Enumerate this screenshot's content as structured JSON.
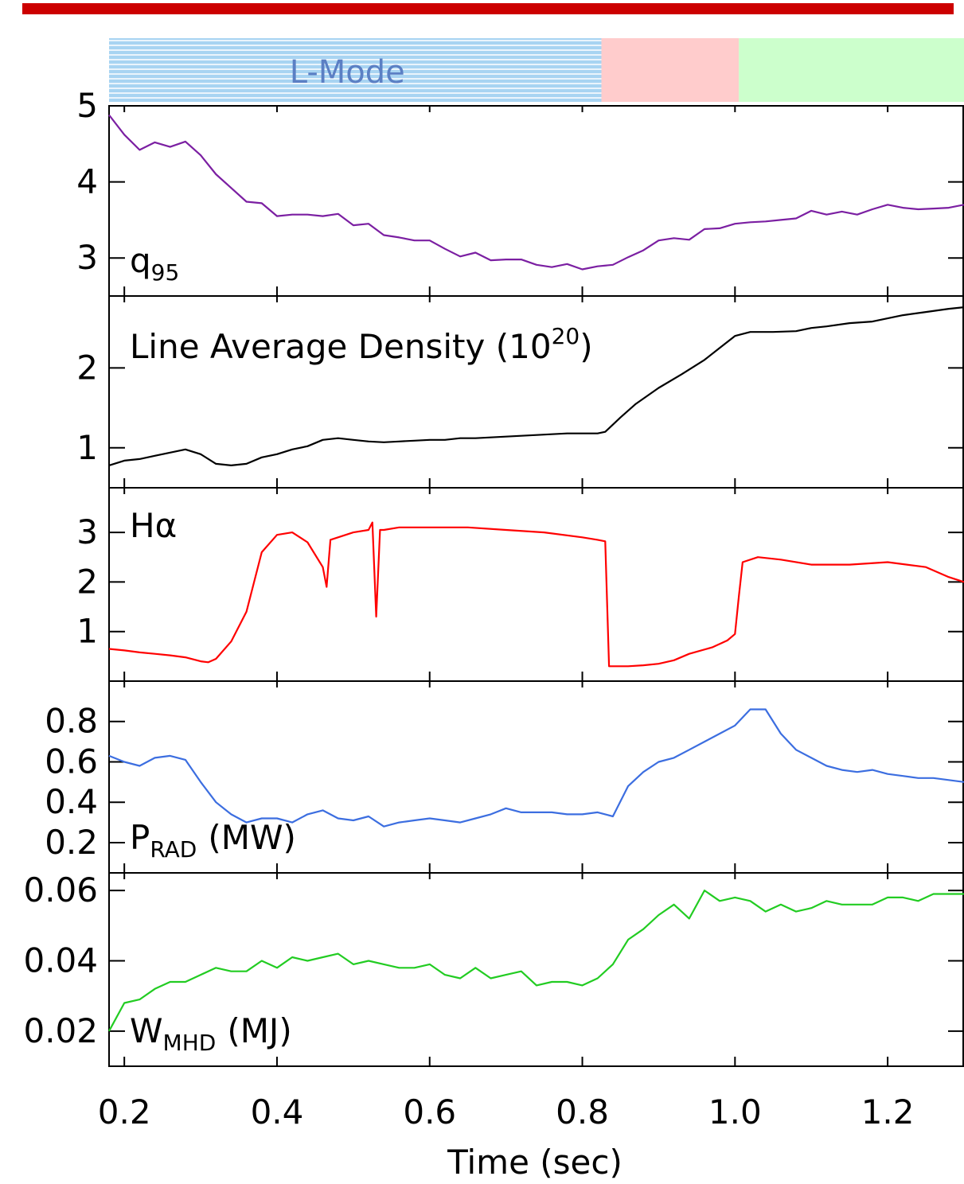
{
  "chart_data": [
    {
      "type": "line",
      "panel": "q95",
      "label_main": "q",
      "label_sub": "95",
      "label_paren": "",
      "color": "#7b1fa2",
      "ylim": [
        2.5,
        5.0
      ],
      "yticks": [
        3,
        4,
        5
      ],
      "series": [
        {
          "x": [
            0.18,
            0.2,
            0.22,
            0.24,
            0.26,
            0.28,
            0.3,
            0.32,
            0.34,
            0.36,
            0.38,
            0.4,
            0.42,
            0.44,
            0.46,
            0.48,
            0.5,
            0.52,
            0.54,
            0.56,
            0.58,
            0.6,
            0.62,
            0.64,
            0.66,
            0.68,
            0.7,
            0.72,
            0.74,
            0.76,
            0.78,
            0.8,
            0.82,
            0.84,
            0.86,
            0.88,
            0.9,
            0.92,
            0.94,
            0.96,
            0.98,
            1.0,
            1.02,
            1.04,
            1.06,
            1.08,
            1.1,
            1.12,
            1.14,
            1.16,
            1.18,
            1.2,
            1.22,
            1.24,
            1.26,
            1.28,
            1.3
          ],
          "y": [
            4.88,
            4.62,
            4.42,
            4.52,
            4.46,
            4.53,
            4.35,
            4.1,
            3.92,
            3.74,
            3.72,
            3.55,
            3.57,
            3.57,
            3.55,
            3.58,
            3.43,
            3.45,
            3.3,
            3.27,
            3.23,
            3.23,
            3.12,
            3.02,
            3.07,
            2.97,
            2.98,
            2.98,
            2.91,
            2.88,
            2.92,
            2.85,
            2.89,
            2.91,
            3.01,
            3.1,
            3.23,
            3.26,
            3.24,
            3.38,
            3.39,
            3.45,
            3.47,
            3.48,
            3.5,
            3.52,
            3.62,
            3.57,
            3.61,
            3.57,
            3.64,
            3.7,
            3.66,
            3.64,
            3.65,
            3.66,
            3.7
          ]
        }
      ]
    },
    {
      "type": "line",
      "panel": "density",
      "label_main": "Line Average Density (10",
      "label_sup": "20",
      "label_paren": ")",
      "color": "#000000",
      "ylim": [
        0.5,
        2.9
      ],
      "yticks": [
        1,
        2
      ],
      "series": [
        {
          "x": [
            0.18,
            0.2,
            0.22,
            0.24,
            0.26,
            0.28,
            0.3,
            0.32,
            0.34,
            0.36,
            0.38,
            0.4,
            0.42,
            0.44,
            0.46,
            0.48,
            0.5,
            0.52,
            0.54,
            0.56,
            0.58,
            0.6,
            0.62,
            0.64,
            0.66,
            0.68,
            0.7,
            0.72,
            0.74,
            0.76,
            0.78,
            0.8,
            0.82,
            0.83,
            0.85,
            0.87,
            0.9,
            0.93,
            0.96,
            0.98,
            1.0,
            1.02,
            1.05,
            1.08,
            1.1,
            1.12,
            1.15,
            1.18,
            1.2,
            1.22,
            1.25,
            1.28,
            1.3
          ],
          "y": [
            0.78,
            0.84,
            0.86,
            0.9,
            0.94,
            0.98,
            0.92,
            0.8,
            0.78,
            0.8,
            0.88,
            0.92,
            0.98,
            1.02,
            1.1,
            1.12,
            1.1,
            1.08,
            1.07,
            1.08,
            1.09,
            1.1,
            1.1,
            1.12,
            1.12,
            1.13,
            1.14,
            1.15,
            1.16,
            1.17,
            1.18,
            1.18,
            1.18,
            1.2,
            1.38,
            1.55,
            1.75,
            1.92,
            2.1,
            2.25,
            2.4,
            2.45,
            2.45,
            2.46,
            2.5,
            2.52,
            2.56,
            2.58,
            2.62,
            2.66,
            2.7,
            2.74,
            2.76
          ]
        }
      ]
    },
    {
      "type": "line",
      "panel": "halpha",
      "label_main": "Hα",
      "label_paren": "",
      "color": "#ff0000",
      "ylim": [
        0,
        3.9
      ],
      "yticks": [
        1,
        2,
        3
      ],
      "series": [
        {
          "x": [
            0.18,
            0.2,
            0.22,
            0.24,
            0.26,
            0.28,
            0.3,
            0.31,
            0.32,
            0.34,
            0.36,
            0.37,
            0.38,
            0.4,
            0.42,
            0.44,
            0.46,
            0.465,
            0.47,
            0.5,
            0.52,
            0.525,
            0.53,
            0.535,
            0.54,
            0.56,
            0.6,
            0.65,
            0.7,
            0.75,
            0.8,
            0.82,
            0.83,
            0.835,
            0.84,
            0.86,
            0.88,
            0.9,
            0.92,
            0.94,
            0.97,
            0.99,
            1.0,
            1.005,
            1.01,
            1.03,
            1.06,
            1.1,
            1.15,
            1.2,
            1.25,
            1.28,
            1.3
          ],
          "y": [
            0.65,
            0.62,
            0.58,
            0.55,
            0.52,
            0.48,
            0.4,
            0.38,
            0.45,
            0.8,
            1.4,
            2.0,
            2.6,
            2.95,
            3.0,
            2.8,
            2.3,
            1.9,
            2.85,
            3.0,
            3.05,
            3.2,
            1.3,
            3.05,
            3.05,
            3.1,
            3.1,
            3.1,
            3.05,
            3.0,
            2.9,
            2.85,
            2.82,
            0.3,
            0.3,
            0.3,
            0.32,
            0.35,
            0.42,
            0.55,
            0.68,
            0.82,
            0.95,
            1.7,
            2.4,
            2.5,
            2.45,
            2.35,
            2.35,
            2.4,
            2.3,
            2.1,
            2.0
          ]
        }
      ]
    },
    {
      "type": "line",
      "panel": "prad",
      "label_main": "P",
      "label_sub": "RAD",
      "label_paren": "(MW)",
      "color": "#3c6ee0",
      "ylim": [
        0.05,
        1.0
      ],
      "yticks": [
        0.2,
        0.4,
        0.6,
        0.8
      ],
      "series": [
        {
          "x": [
            0.18,
            0.2,
            0.22,
            0.24,
            0.26,
            0.28,
            0.3,
            0.32,
            0.34,
            0.36,
            0.38,
            0.4,
            0.42,
            0.44,
            0.46,
            0.48,
            0.5,
            0.52,
            0.54,
            0.56,
            0.58,
            0.6,
            0.62,
            0.64,
            0.66,
            0.68,
            0.7,
            0.72,
            0.74,
            0.76,
            0.78,
            0.8,
            0.82,
            0.84,
            0.86,
            0.88,
            0.9,
            0.92,
            0.94,
            0.96,
            0.98,
            1.0,
            1.02,
            1.04,
            1.06,
            1.08,
            1.1,
            1.12,
            1.14,
            1.16,
            1.18,
            1.2,
            1.22,
            1.24,
            1.26,
            1.28,
            1.3
          ],
          "y": [
            0.63,
            0.6,
            0.58,
            0.62,
            0.63,
            0.61,
            0.5,
            0.4,
            0.34,
            0.3,
            0.32,
            0.32,
            0.3,
            0.34,
            0.36,
            0.32,
            0.31,
            0.33,
            0.28,
            0.3,
            0.31,
            0.32,
            0.31,
            0.3,
            0.32,
            0.34,
            0.37,
            0.35,
            0.35,
            0.35,
            0.34,
            0.34,
            0.35,
            0.33,
            0.48,
            0.55,
            0.6,
            0.62,
            0.66,
            0.7,
            0.74,
            0.78,
            0.86,
            0.86,
            0.74,
            0.66,
            0.62,
            0.58,
            0.56,
            0.55,
            0.56,
            0.54,
            0.53,
            0.52,
            0.52,
            0.51,
            0.5
          ]
        }
      ]
    },
    {
      "type": "line",
      "panel": "wmhd",
      "label_main": "W",
      "label_sub": "MHD",
      "label_paren": "(MJ)",
      "color": "#22cc22",
      "ylim": [
        0.01,
        0.065
      ],
      "yticks": [
        0.02,
        0.04,
        0.06
      ],
      "series": [
        {
          "x": [
            0.18,
            0.2,
            0.22,
            0.24,
            0.26,
            0.28,
            0.3,
            0.32,
            0.34,
            0.36,
            0.38,
            0.4,
            0.42,
            0.44,
            0.46,
            0.48,
            0.5,
            0.52,
            0.54,
            0.56,
            0.58,
            0.6,
            0.62,
            0.64,
            0.66,
            0.68,
            0.7,
            0.72,
            0.74,
            0.76,
            0.78,
            0.8,
            0.82,
            0.84,
            0.86,
            0.88,
            0.9,
            0.92,
            0.94,
            0.96,
            0.98,
            1.0,
            1.02,
            1.04,
            1.06,
            1.08,
            1.1,
            1.12,
            1.14,
            1.16,
            1.18,
            1.2,
            1.22,
            1.24,
            1.26,
            1.28,
            1.3
          ],
          "y": [
            0.02,
            0.028,
            0.029,
            0.032,
            0.034,
            0.034,
            0.036,
            0.038,
            0.037,
            0.037,
            0.04,
            0.038,
            0.041,
            0.04,
            0.041,
            0.042,
            0.039,
            0.04,
            0.039,
            0.038,
            0.038,
            0.039,
            0.036,
            0.035,
            0.038,
            0.035,
            0.036,
            0.037,
            0.033,
            0.034,
            0.034,
            0.033,
            0.035,
            0.039,
            0.046,
            0.049,
            0.053,
            0.056,
            0.052,
            0.06,
            0.057,
            0.058,
            0.057,
            0.054,
            0.056,
            0.054,
            0.055,
            0.057,
            0.056,
            0.056,
            0.056,
            0.058,
            0.058,
            0.057,
            0.059,
            0.059,
            0.059
          ]
        }
      ]
    }
  ],
  "xaxis": {
    "label": "Time (sec)",
    "xlim": [
      0.18,
      1.3
    ],
    "ticks": [
      0.2,
      0.4,
      0.6,
      0.8,
      1.0,
      1.2
    ],
    "tick_labels": [
      "0.2",
      "0.4",
      "0.6",
      "0.8",
      "1.0",
      "1.2"
    ]
  },
  "mode_bands": [
    {
      "label": "L-Mode",
      "start": 0.18,
      "end": 0.825,
      "color": "#a8d4f2"
    },
    {
      "label": "",
      "start": 0.825,
      "end": 1.005,
      "color": "#ffcccc"
    },
    {
      "label": "",
      "start": 1.005,
      "end": 1.3,
      "color": "#ccffcc"
    }
  ],
  "top_bar_color": "#cc0000"
}
